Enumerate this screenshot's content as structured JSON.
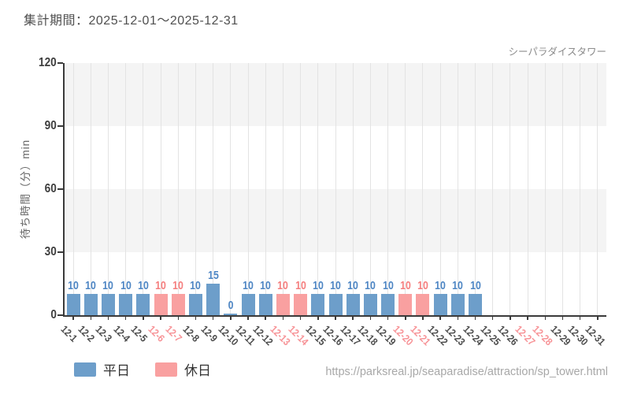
{
  "header": {
    "title": "集計期間：2025-12-01～2025-12-31"
  },
  "chart": {
    "attraction_label": "シーパラダイスタワー",
    "y_axis_label": "待ち時間（分）min"
  },
  "legend": {
    "weekday": "平日",
    "holiday": "休日"
  },
  "footer": {
    "url": "https://parksreal.jp/seaparadise/attraction/sp_tower.html"
  },
  "colors": {
    "weekday_bar": "#6d9eca",
    "holiday_bar": "#f9a0a0",
    "weekday_value_label": "#4e86c4",
    "holiday_value_label": "#f57f7f",
    "weekday_tick_label": "#4d4d4d",
    "holiday_tick_label": "#f79397",
    "band_gray": "#f4f4f4",
    "band_white": "#ffffff",
    "gridline": "#e3e3e3",
    "axis": "#3a3a3a"
  },
  "chart_data": {
    "type": "bar",
    "title": "シーパラダイスタワー",
    "xlabel": "",
    "ylabel": "待ち時間（分）min",
    "ylim": [
      0,
      120
    ],
    "yticks": [
      0,
      30,
      60,
      90,
      120
    ],
    "grid": "vertical gridlines per category; horizontal bands alternating gray/white every 30 units",
    "legend_position": "bottom-left",
    "categories": [
      "12-1",
      "12-2",
      "12-3",
      "12-4",
      "12-5",
      "12-6",
      "12-7",
      "12-8",
      "12-9",
      "12-10",
      "12-11",
      "12-12",
      "12-13",
      "12-14",
      "12-15",
      "12-16",
      "12-17",
      "12-18",
      "12-19",
      "12-20",
      "12-21",
      "12-22",
      "12-23",
      "12-24",
      "12-25",
      "12-26",
      "12-27",
      "12-28",
      "12-29",
      "12-30",
      "12-31"
    ],
    "values": [
      10,
      10,
      10,
      10,
      10,
      10,
      10,
      10,
      15,
      0,
      10,
      10,
      10,
      10,
      10,
      10,
      10,
      10,
      10,
      10,
      10,
      10,
      10,
      10,
      null,
      null,
      null,
      null,
      null,
      null,
      null
    ],
    "day_types": [
      "weekday",
      "weekday",
      "weekday",
      "weekday",
      "weekday",
      "holiday",
      "holiday",
      "weekday",
      "weekday",
      "weekday",
      "weekday",
      "weekday",
      "holiday",
      "holiday",
      "weekday",
      "weekday",
      "weekday",
      "weekday",
      "weekday",
      "holiday",
      "holiday",
      "weekday",
      "weekday",
      "weekday",
      "weekday",
      "weekday",
      "holiday",
      "holiday",
      "weekday",
      "weekday",
      "weekday"
    ],
    "series": [
      {
        "name": "平日",
        "color": "#6d9eca"
      },
      {
        "name": "休日",
        "color": "#f9a0a0"
      }
    ]
  }
}
